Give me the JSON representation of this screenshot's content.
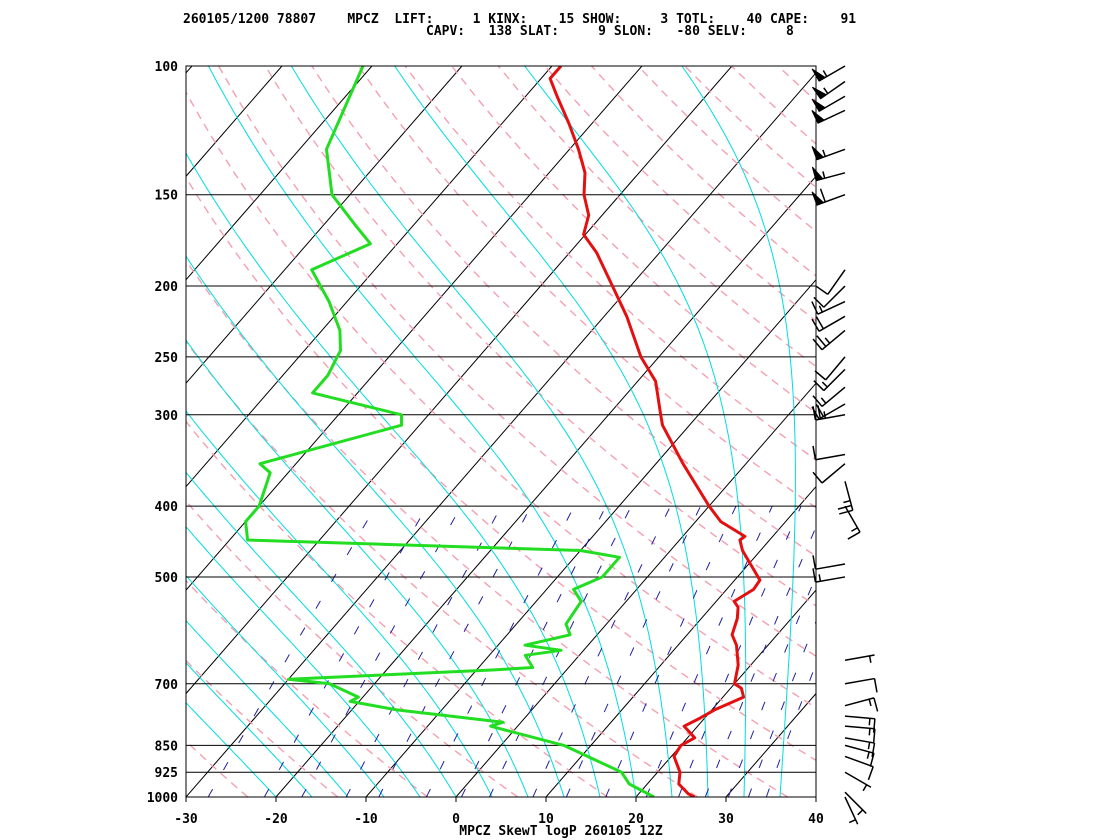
{
  "header": {
    "line1": "260105/1200 78807    MPCZ  LIFT:     1 KINX:    15 SHOW:     3 TOTL:    40 CAPE:    91",
    "line2": "CAPV:   138 SLAT:     9 SLON:   -80 SELV:     8"
  },
  "colors": {
    "temperature": "#e41010",
    "dewpoint": "#22dd22",
    "isotherms": "#000000",
    "dry_adiabats": "#f4a0b0",
    "moist_adiabats": "#00dddd",
    "mixing_ratio": "#2020a0",
    "wind_barbs": "#000000"
  },
  "chart_data": {
    "type": "line",
    "title": "MPCZ SkewT logP 260105 12Z",
    "xlabel": "",
    "ylabel": "",
    "xlim": [
      -30,
      40
    ],
    "ylim": [
      1000,
      100
    ],
    "x_ticks": [
      "-30",
      "-20",
      "-10",
      "0",
      "10",
      "20",
      "30",
      "40"
    ],
    "pressure_levels": [
      1000,
      925,
      850,
      700,
      500,
      400,
      300,
      250,
      200,
      150,
      100
    ],
    "pressure_labels": [
      "1000",
      "925",
      "850",
      "700",
      "500",
      "400",
      "300",
      "250",
      "200",
      "150",
      "100"
    ],
    "series": [
      {
        "key": "temperature",
        "points": [
          [
            1000,
            26.5
          ],
          [
            990,
            25.5
          ],
          [
            960,
            23.5
          ],
          [
            925,
            22.5
          ],
          [
            880,
            20.3
          ],
          [
            850,
            20.0
          ],
          [
            830,
            20.8
          ],
          [
            800,
            18.5
          ],
          [
            780,
            19.5
          ],
          [
            760,
            20.3
          ],
          [
            730,
            22.3
          ],
          [
            710,
            21.2
          ],
          [
            700,
            20.0
          ],
          [
            660,
            18.6
          ],
          [
            620,
            16.5
          ],
          [
            600,
            15.0
          ],
          [
            570,
            14.0
          ],
          [
            550,
            13.0
          ],
          [
            540,
            12.0
          ],
          [
            520,
            13.0
          ],
          [
            505,
            12.8
          ],
          [
            460,
            8.0
          ],
          [
            445,
            6.7
          ],
          [
            440,
            6.9
          ],
          [
            420,
            2.8
          ],
          [
            400,
            0.0
          ],
          [
            350,
            -7.0
          ],
          [
            310,
            -13.0
          ],
          [
            300,
            -14.2
          ],
          [
            270,
            -18.0
          ],
          [
            250,
            -22.0
          ],
          [
            220,
            -27.5
          ],
          [
            200,
            -32.0
          ],
          [
            180,
            -37.0
          ],
          [
            170,
            -40.2
          ],
          [
            160,
            -41.5
          ],
          [
            150,
            -44.0
          ],
          [
            140,
            -46.0
          ],
          [
            130,
            -49.0
          ],
          [
            120,
            -52.5
          ],
          [
            110,
            -56.5
          ],
          [
            104,
            -59.0
          ],
          [
            100,
            -59.0
          ]
        ]
      },
      {
        "key": "dewpoint",
        "points": [
          [
            1000,
            22.0
          ],
          [
            960,
            18.0
          ],
          [
            925,
            16.0
          ],
          [
            850,
            7.0
          ],
          [
            800,
            -3.0
          ],
          [
            790,
            -2.0
          ],
          [
            760,
            -15.0
          ],
          [
            740,
            -21.0
          ],
          [
            730,
            -20.5
          ],
          [
            700,
            -25.0
          ],
          [
            690,
            -30.0
          ],
          [
            670,
            -8.0
          ],
          [
            665,
            -4.0
          ],
          [
            640,
            -6.0
          ],
          [
            630,
            -2.5
          ],
          [
            620,
            -7.0
          ],
          [
            600,
            -3.0
          ],
          [
            580,
            -4.5
          ],
          [
            540,
            -5.0
          ],
          [
            520,
            -7.0
          ],
          [
            500,
            -5.0
          ],
          [
            470,
            -5.0
          ],
          [
            460,
            -10.0
          ],
          [
            445,
            -48.0
          ],
          [
            420,
            -50.0
          ],
          [
            400,
            -50.0
          ],
          [
            360,
            -52.0
          ],
          [
            350,
            -54.0
          ],
          [
            310,
            -42.0
          ],
          [
            300,
            -43.0
          ],
          [
            280,
            -55.0
          ],
          [
            265,
            -55.0
          ],
          [
            245,
            -56.0
          ],
          [
            230,
            -58.0
          ],
          [
            210,
            -62.0
          ],
          [
            190,
            -67.0
          ],
          [
            175,
            -63.0
          ],
          [
            165,
            -66.5
          ],
          [
            150,
            -72.0
          ],
          [
            130,
            -77.0
          ],
          [
            100,
            -81.0
          ]
        ]
      }
    ],
    "wind_barbs": [
      {
        "p": 1000,
        "dir": 155,
        "spd": 5
      },
      {
        "p": 985,
        "dir": 135,
        "spd": 5
      },
      {
        "p": 925,
        "dir": 120,
        "spd": 5
      },
      {
        "p": 880,
        "dir": 110,
        "spd": 10
      },
      {
        "p": 850,
        "dir": 105,
        "spd": 15
      },
      {
        "p": 830,
        "dir": 100,
        "spd": 15
      },
      {
        "p": 800,
        "dir": 95,
        "spd": 15
      },
      {
        "p": 775,
        "dir": 95,
        "spd": 15
      },
      {
        "p": 750,
        "dir": 75,
        "spd": 15
      },
      {
        "p": 700,
        "dir": 80,
        "spd": 10
      },
      {
        "p": 650,
        "dir": 80,
        "spd": 5
      },
      {
        "p": 500,
        "dir": 260,
        "spd": 15
      },
      {
        "p": 480,
        "dir": 260,
        "spd": 10
      },
      {
        "p": 400,
        "dir": 150,
        "spd": 15
      },
      {
        "p": 370,
        "dir": 165,
        "spd": 25
      },
      {
        "p": 350,
        "dir": 230,
        "spd": 10
      },
      {
        "p": 340,
        "dir": 260,
        "spd": 10
      },
      {
        "p": 300,
        "dir": 260,
        "spd": 25
      },
      {
        "p": 290,
        "dir": 240,
        "spd": 20
      },
      {
        "p": 275,
        "dir": 230,
        "spd": 15
      },
      {
        "p": 260,
        "dir": 225,
        "spd": 15
      },
      {
        "p": 250,
        "dir": 220,
        "spd": 10
      },
      {
        "p": 230,
        "dir": 230,
        "spd": 25
      },
      {
        "p": 220,
        "dir": 240,
        "spd": 20
      },
      {
        "p": 210,
        "dir": 245,
        "spd": 15
      },
      {
        "p": 200,
        "dir": 225,
        "spd": 10
      },
      {
        "p": 190,
        "dir": 215,
        "spd": 10
      },
      {
        "p": 150,
        "dir": 250,
        "spd": 60
      },
      {
        "p": 140,
        "dir": 255,
        "spd": 55
      },
      {
        "p": 130,
        "dir": 250,
        "spd": 55
      },
      {
        "p": 115,
        "dir": 245,
        "spd": 50
      },
      {
        "p": 110,
        "dir": 240,
        "spd": 50
      },
      {
        "p": 105,
        "dir": 235,
        "spd": 55
      },
      {
        "p": 100,
        "dir": 240,
        "spd": 55
      }
    ]
  }
}
